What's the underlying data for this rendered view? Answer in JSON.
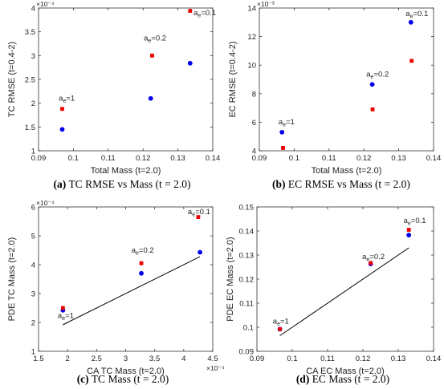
{
  "chart_data": [
    {
      "type": "scatter",
      "caption": {
        "letter": "(a)",
        "text": "TC RMSE vs Mass (t = 2.0)"
      },
      "xlabel": "Total Mass (t=2.0)",
      "ylabel": "TC RMSE (t=0.4-2)",
      "xlim": [
        0.09,
        0.14
      ],
      "ylim": [
        0.0001,
        0.0004
      ],
      "xticks": [
        "0.09",
        "0.1",
        "0.11",
        "0.12",
        "0.13",
        "0.14"
      ],
      "yticks": [
        "1",
        "1.5",
        "2",
        "2.5",
        "3",
        "3.5",
        "4"
      ],
      "y_exponent_label": "×10⁻⁴",
      "x_exponent_label": "",
      "series": [
        {
          "color": "#0000ee",
          "marker": "circle",
          "x": [
            0.0968,
            0.1222,
            0.1335
          ],
          "y": [
            0.000145,
            0.00021,
            0.000284
          ]
        },
        {
          "color": "#ee0000",
          "marker": "square",
          "x": [
            0.0968,
            0.1226,
            0.1335
          ],
          "y": [
            0.000188,
            0.0003,
            0.000394
          ]
        }
      ],
      "annotations": [
        {
          "base": "a",
          "sub": "e",
          "rest": "=1",
          "x": 0.0958,
          "y": 0.000205
        },
        {
          "base": "a",
          "sub": "e",
          "rest": "=0.2",
          "x": 0.1202,
          "y": 0.000332
        },
        {
          "base": "a",
          "sub": "e",
          "rest": "=0.1",
          "x": 0.1345,
          "y": 0.000385
        }
      ],
      "fit_line": null
    },
    {
      "type": "scatter",
      "caption": {
        "letter": "(b)",
        "text": "EC RMSE vs Mass (t = 2.0)"
      },
      "xlabel": "Total Mass (t=2.0)",
      "ylabel": "EC RMSE (t=0.4-2)",
      "xlim": [
        0.09,
        0.14
      ],
      "ylim": [
        0.004,
        0.014
      ],
      "xticks": [
        "0.09",
        "0.1",
        "0.11",
        "0.12",
        "0.13",
        "0.14"
      ],
      "yticks": [
        "4",
        "6",
        "8",
        "10",
        "12",
        "14"
      ],
      "y_exponent_label": "×10⁻³",
      "x_exponent_label": "",
      "series": [
        {
          "color": "#0000ee",
          "marker": "circle",
          "x": [
            0.0965,
            0.1224,
            0.1335
          ],
          "y": [
            0.0053,
            0.00865,
            0.013
          ]
        },
        {
          "color": "#ee0000",
          "marker": "square",
          "x": [
            0.0968,
            0.1225,
            0.1337
          ],
          "y": [
            0.0042,
            0.0069,
            0.0103
          ]
        }
      ],
      "annotations": [
        {
          "base": "a",
          "sub": "e",
          "rest": "=1",
          "x": 0.0955,
          "y": 0.00585
        },
        {
          "base": "a",
          "sub": "e",
          "rest": "=0.2",
          "x": 0.1207,
          "y": 0.0092
        },
        {
          "base": "a",
          "sub": "e",
          "rest": "=0.1",
          "x": 0.132,
          "y": 0.01345
        }
      ],
      "fit_line": null
    },
    {
      "type": "scatter",
      "caption": {
        "letter": "(c)",
        "text": "TC Mass (t = 2.0)"
      },
      "xlabel": "CA TC Mass (t=2.0)",
      "ylabel": "PDE TC Mass (t=2.0)",
      "xlim": [
        0.00015,
        0.00045
      ],
      "ylim": [
        0.0001,
        0.0006
      ],
      "xticks": [
        "1.5",
        "2",
        "2.5",
        "3",
        "3.5",
        "4",
        "4.5"
      ],
      "yticks": [
        "1",
        "2",
        "3",
        "4",
        "5",
        "6"
      ],
      "y_exponent_label": "×10⁻⁴",
      "x_exponent_label": "×10⁻⁴",
      "series": [
        {
          "color": "#0000ee",
          "marker": "circle",
          "x": [
            0.000192,
            0.000327,
            0.000428
          ],
          "y": [
            0.000242,
            0.00037,
            0.000443
          ]
        },
        {
          "color": "#ee0000",
          "marker": "square",
          "x": [
            0.000192,
            0.000327,
            0.000425
          ],
          "y": [
            0.00025,
            0.000405,
            0.000565
          ]
        }
      ],
      "annotations": [
        {
          "base": "a",
          "sub": "e",
          "rest": "=1",
          "x": 0.000183,
          "y": 0.000215
        },
        {
          "base": "a",
          "sub": "e",
          "rest": "=0.2",
          "x": 0.00031,
          "y": 0.000442
        },
        {
          "base": "a",
          "sub": "e",
          "rest": "=0.1",
          "x": 0.000407,
          "y": 0.000575
        }
      ],
      "fit_line": {
        "x": [
          0.000192,
          0.000428
        ],
        "y": [
          0.000192,
          0.000428
        ]
      }
    },
    {
      "type": "scatter",
      "caption": {
        "letter": "(d)",
        "text": "EC Mass (t = 2.0)"
      },
      "xlabel": "CA EC Mass (t=2.0)",
      "ylabel": "PDE EC Mass (t=2.0)",
      "xlim": [
        0.09,
        0.14
      ],
      "ylim": [
        0.09,
        0.15
      ],
      "xticks": [
        "0.09",
        "0.1",
        "0.11",
        "0.12",
        "0.13",
        "0.14"
      ],
      "yticks": [
        "0.09",
        "0.1",
        "0.11",
        "0.12",
        "0.13",
        "0.14",
        "0.15"
      ],
      "y_exponent_label": "",
      "x_exponent_label": "",
      "series": [
        {
          "color": "#0000ee",
          "marker": "circle",
          "x": [
            0.0965,
            0.1222,
            0.133
          ],
          "y": [
            0.0992,
            0.1263,
            0.1383
          ]
        },
        {
          "color": "#ee0000",
          "marker": "square",
          "x": [
            0.0965,
            0.1222,
            0.133
          ],
          "y": [
            0.0992,
            0.1267,
            0.1405
          ]
        }
      ],
      "annotations": [
        {
          "base": "a",
          "sub": "e",
          "rest": "=1",
          "x": 0.0945,
          "y": 0.1015
        },
        {
          "base": "a",
          "sub": "e",
          "rest": "=0.2",
          "x": 0.1198,
          "y": 0.1283
        },
        {
          "base": "a",
          "sub": "e",
          "rest": "=0.1",
          "x": 0.1315,
          "y": 0.1433
        }
      ],
      "fit_line": {
        "x": [
          0.0965,
          0.133
        ],
        "y": [
          0.0965,
          0.133
        ]
      }
    }
  ]
}
